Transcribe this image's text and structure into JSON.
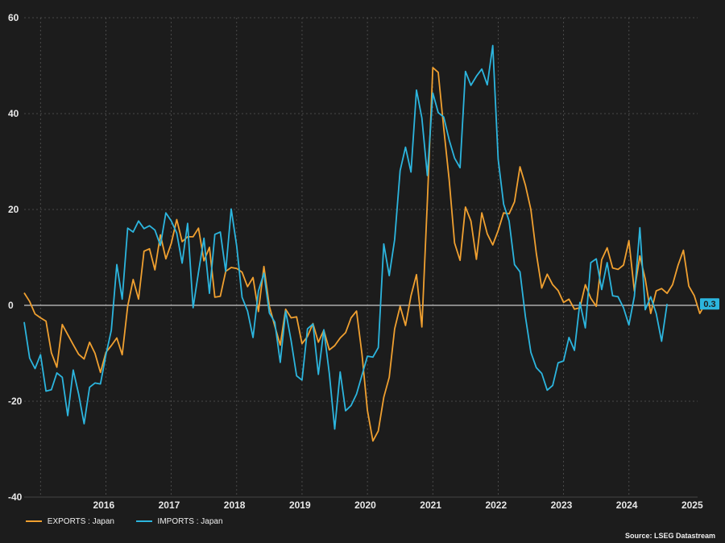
{
  "chart_data": {
    "type": "line",
    "title": "",
    "xlabel": "",
    "ylabel": "",
    "ylim": [
      -40,
      60
    ],
    "xlim": [
      2015.25,
      2025.55
    ],
    "yticks": [
      -40,
      -20,
      0,
      20,
      40,
      60
    ],
    "xticks": [
      {
        "label": "2016",
        "pos": 2016.0
      },
      {
        "label": "2017",
        "pos": 2017.0
      },
      {
        "label": "2018",
        "pos": 2018.0
      },
      {
        "label": "2019",
        "pos": 2019.0
      },
      {
        "label": "2020",
        "pos": 2020.0
      },
      {
        "label": "2021",
        "pos": 2021.0
      },
      {
        "label": "2022",
        "pos": 2022.0
      },
      {
        "label": "2023",
        "pos": 2023.0
      },
      {
        "label": "2024",
        "pos": 2024.0
      },
      {
        "label": "2025",
        "pos": 2025.0
      }
    ],
    "x_start": 2015.25,
    "x_step": 0.08333,
    "grid": true,
    "zero_line": true,
    "series": [
      {
        "name": "EXPORTS : Japan",
        "color": "#f0a030",
        "values": [
          2.6,
          0.8,
          -1.8,
          -2.6,
          -3.3,
          -9.9,
          -12.9,
          -4.0,
          -6.1,
          -8.2,
          -10.2,
          -11.2,
          -7.7,
          -10.0,
          -14.0,
          -9.8,
          -8.4,
          -6.8,
          -10.3,
          -0.2,
          5.4,
          1.3,
          11.3,
          11.8,
          7.4,
          14.7,
          9.7,
          12.9,
          17.9,
          13.3,
          14.3,
          14.3,
          16.1,
          9.3,
          12.1,
          1.7,
          1.9,
          7.1,
          7.9,
          7.7,
          6.9,
          3.9,
          5.8,
          -1.3,
          8.1,
          -0.2,
          -4.3,
          -8.3,
          -0.8,
          -2.6,
          -2.4,
          -8.0,
          -6.5,
          -3.8,
          -7.7,
          -5.2,
          -9.3,
          -8.4,
          -6.8,
          -5.7,
          -2.6,
          -1.2,
          -10.1,
          -21.9,
          -28.3,
          -26.2,
          -19.2,
          -15.0,
          -4.9,
          -0.2,
          -4.2,
          2.0,
          6.4,
          -4.5,
          21.7,
          49.6,
          48.6,
          37.0,
          26.2,
          13.0,
          9.4,
          20.5,
          17.6,
          9.6,
          19.3,
          14.9,
          12.6,
          15.6,
          19.3,
          19.1,
          21.6,
          28.9,
          25.1,
          20.0,
          10.8,
          3.6,
          6.5,
          4.3,
          3.1,
          0.6,
          1.3,
          -0.8,
          -0.5,
          4.3,
          1.5,
          -0.2,
          9.5,
          12.0,
          7.8,
          7.5,
          8.4,
          13.5,
          3.0,
          10.3,
          5.5,
          -1.7,
          3.0,
          3.5,
          2.5,
          4.3,
          8.3,
          11.5,
          4.0,
          2.0,
          -1.7,
          0.3
        ],
        "last_label": ""
      },
      {
        "name": "IMPORTS : Japan",
        "color": "#2cb5de",
        "values": [
          -3.5,
          -11.0,
          -13.2,
          -10.3,
          -17.9,
          -17.6,
          -14.1,
          -15.0,
          -23.0,
          -13.5,
          -18.5,
          -24.7,
          -17.1,
          -16.2,
          -16.4,
          -10.3,
          -5.2,
          8.5,
          1.3,
          16.1,
          15.3,
          17.6,
          16.0,
          16.6,
          15.7,
          12.5,
          19.3,
          17.6,
          15.1,
          8.8,
          17.1,
          -0.5,
          6.9,
          14.0,
          2.5,
          14.8,
          15.3,
          7.1,
          20.1,
          12.4,
          1.7,
          -1.2,
          -6.7,
          3.0,
          6.7,
          -1.6,
          -3.5,
          -11.9,
          -1.2,
          -7.4,
          -14.7,
          -15.6,
          -4.9,
          -3.9,
          -14.4,
          -5.1,
          -14.2,
          -25.8,
          -13.9,
          -22.0,
          -20.9,
          -18.5,
          -14.6,
          -10.6,
          -10.8,
          -8.8,
          12.8,
          6.2,
          13.7,
          28.1,
          33.0,
          27.8,
          44.9,
          39.1,
          27.1,
          44.3,
          40.2,
          39.3,
          34.5,
          30.7,
          28.7,
          48.8,
          45.9,
          47.8,
          49.3,
          46.0,
          54.2,
          30.5,
          21.1,
          17.6,
          8.5,
          7.0,
          -2.3,
          -9.8,
          -13.0,
          -14.2,
          -17.7,
          -16.7,
          -12.0,
          -11.6,
          -6.7,
          -9.4,
          0.6,
          -4.7,
          8.9,
          9.7,
          3.3,
          8.9,
          2.0,
          1.8,
          -0.5,
          -4.1,
          1.9,
          16.2,
          -0.9,
          1.8,
          -1.7,
          -7.5,
          0.3
        ],
        "last_label": "0.3"
      }
    ],
    "legend": [
      {
        "label": "EXPORTS : Japan",
        "color": "#f0a030"
      },
      {
        "label": "IMPORTS : Japan",
        "color": "#2cb5de"
      }
    ],
    "source": "Source: LSEG Datastream"
  }
}
